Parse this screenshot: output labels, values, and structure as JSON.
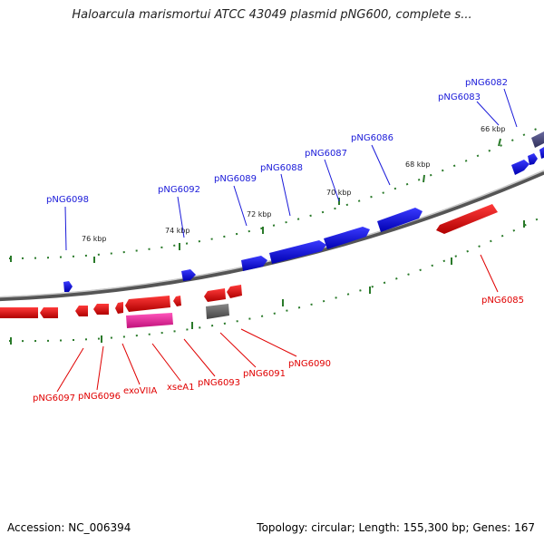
{
  "title": "Haloarcula marismortui ATCC 43049 plasmid pNG600, complete s...",
  "footer": {
    "accession": "Accession: NC_006394",
    "summary": "Topology: circular; Length: 155,300 bp; Genes: 167"
  },
  "scale_labels": [
    "76 kbp",
    "74 kbp",
    "72 kbp",
    "70 kbp",
    "68 kbp",
    "66 kbp"
  ],
  "forward_genes": [
    "pNG6098",
    "pNG6092",
    "pNG6089",
    "pNG6088",
    "pNG6087",
    "pNG6086",
    "pNG6083",
    "pNG6082"
  ],
  "reverse_genes": [
    "pNG6097",
    "pNG6096",
    "exoVIIA",
    "xseA1",
    "pNG6093",
    "pNG6091",
    "pNG6090",
    "pNG6085"
  ],
  "colors": {
    "forward": "#1a1ad9",
    "reverse": "#e00000",
    "pink": "#e8209a",
    "grey": "#666666",
    "navy": "#4a4a80",
    "tick": "#2a7a2a",
    "backbone": "#888888"
  }
}
